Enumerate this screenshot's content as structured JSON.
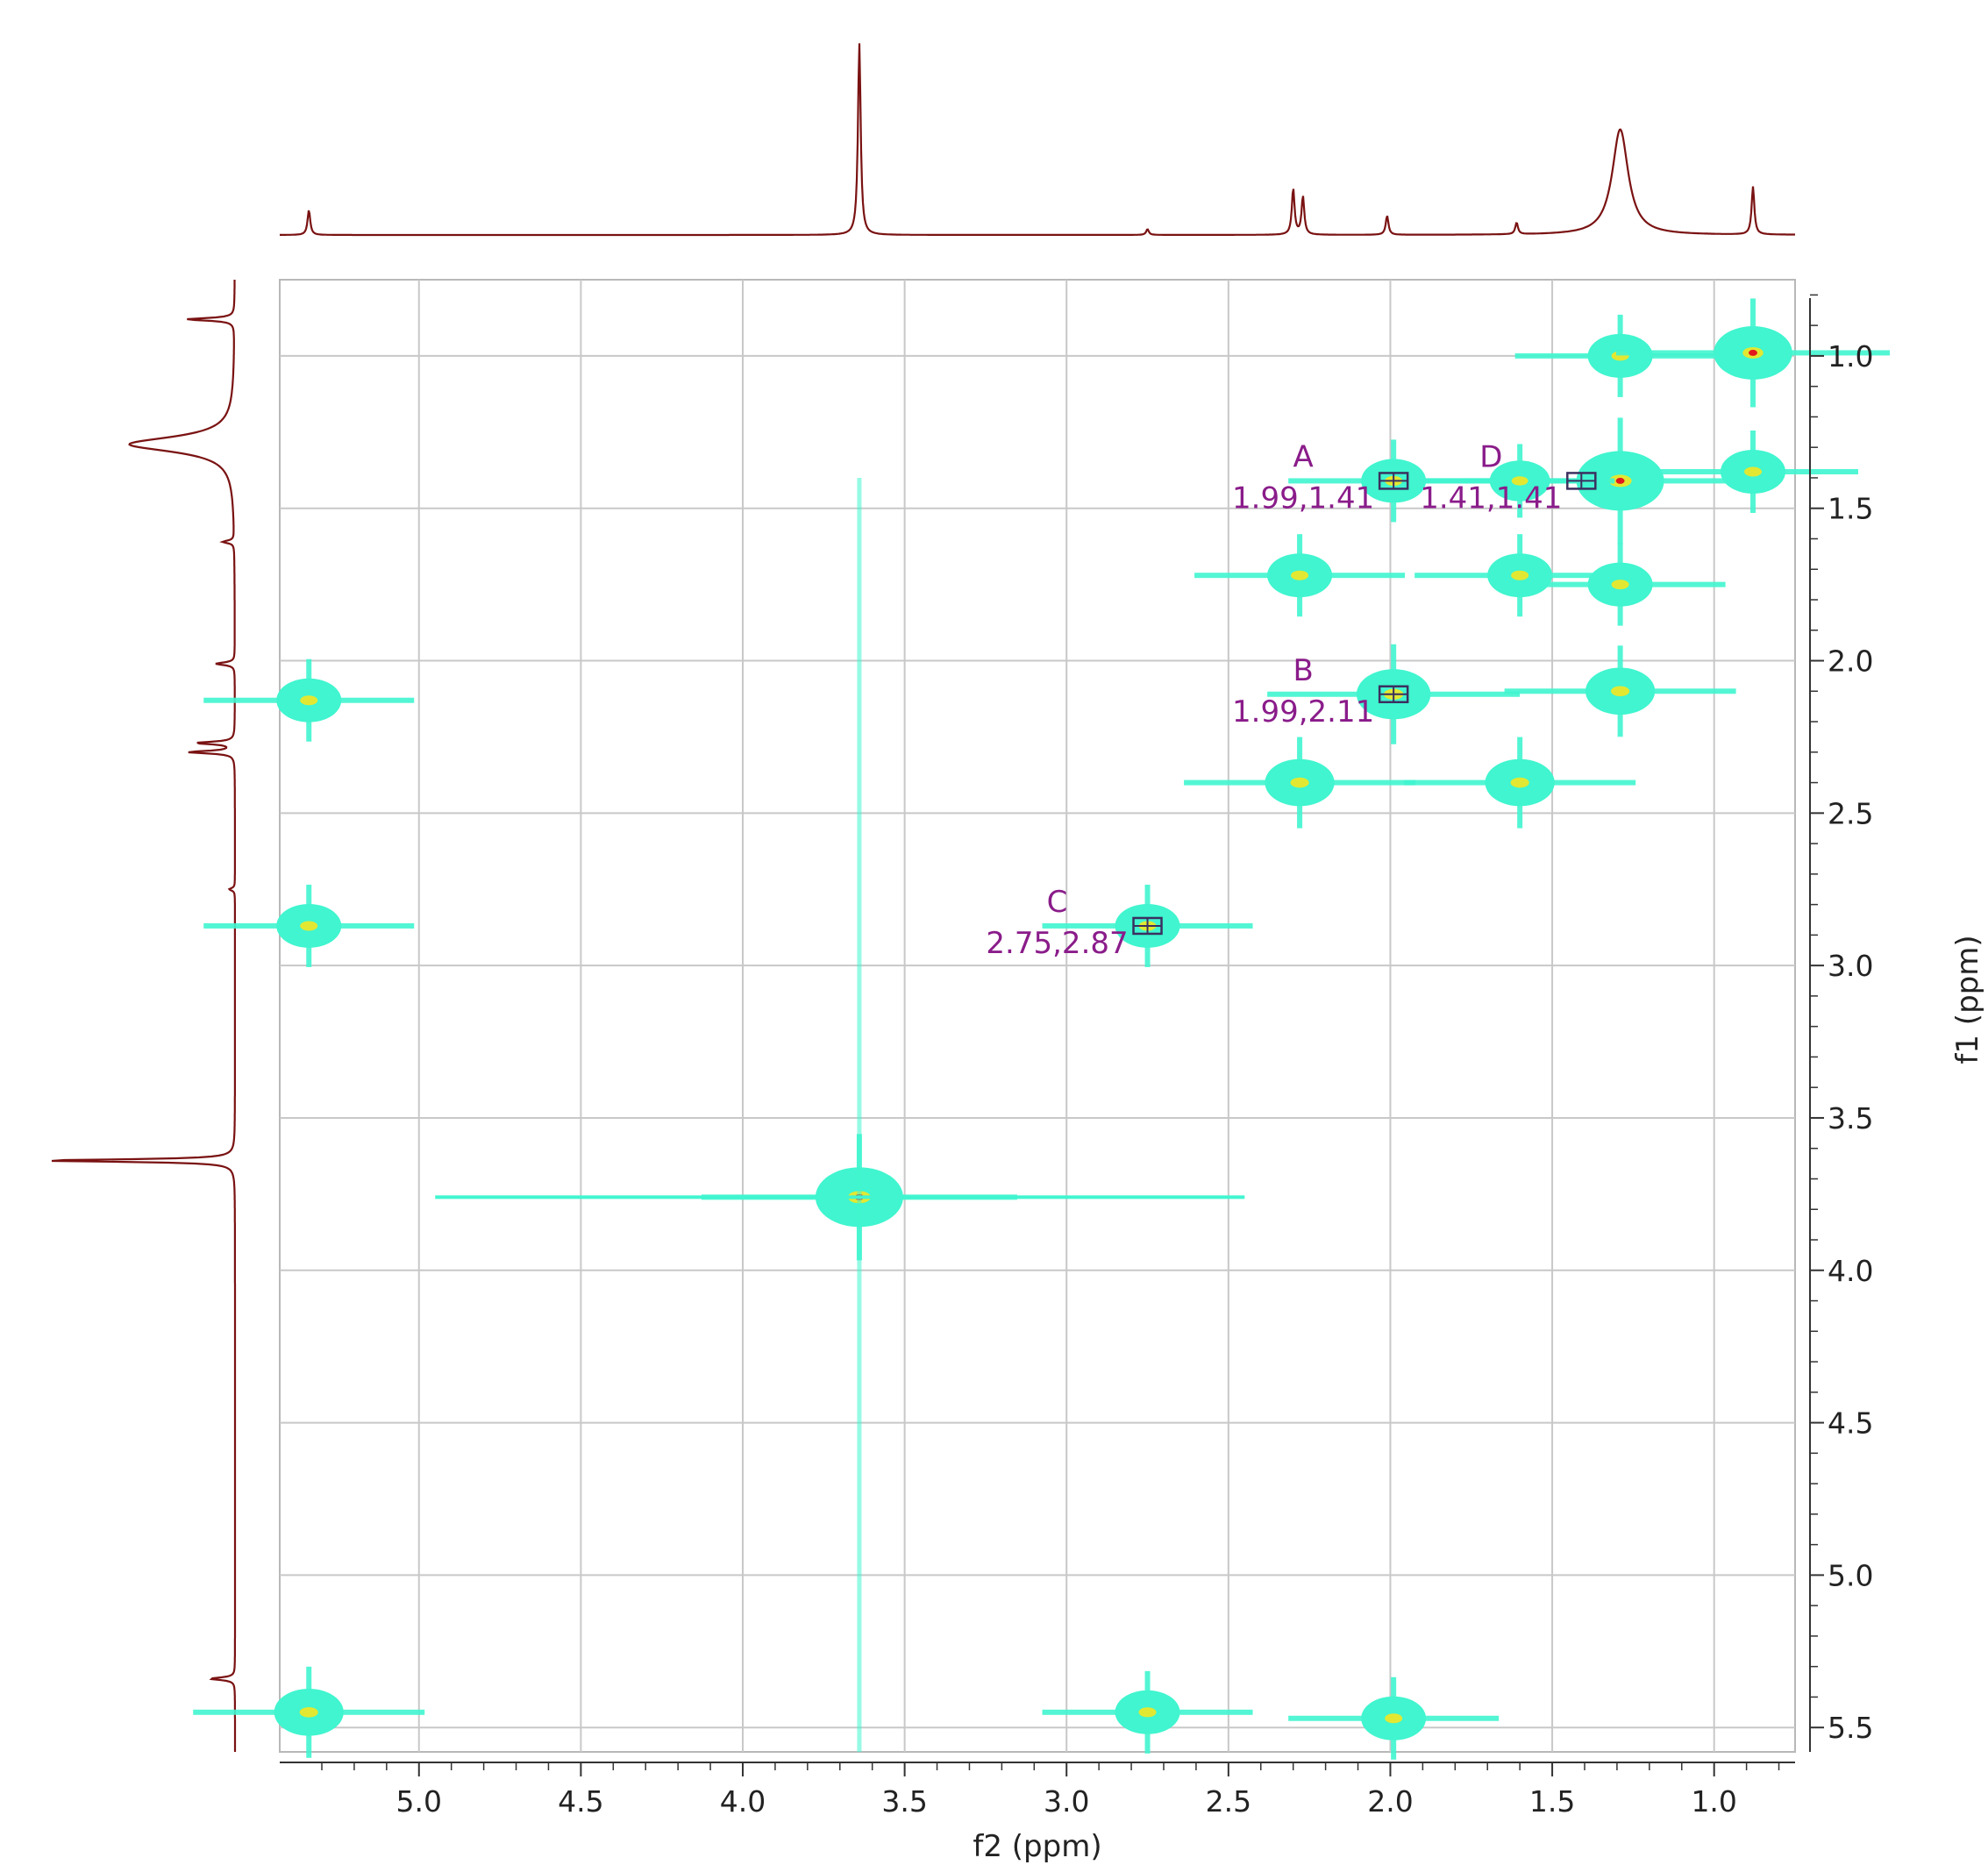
{
  "chart_data": {
    "type": "heatmap",
    "subtype": "2D NMR COSY contour plot with 1D projections",
    "xlabel": "f2 (ppm)",
    "ylabel": "f1 (ppm)",
    "xlim": [
      5.43,
      0.75
    ],
    "ylim": [
      0.75,
      5.58
    ],
    "x_ticks": [
      "5.0",
      "4.5",
      "4.0",
      "3.5",
      "3.0",
      "2.5",
      "2.0",
      "1.5",
      "1.0"
    ],
    "y_ticks": [
      "1.0",
      "1.5",
      "2.0",
      "2.5",
      "3.0",
      "3.5",
      "4.0",
      "4.5",
      "5.0",
      "5.5"
    ],
    "grid": true,
    "colors": {
      "contour_low": "#40f5cf",
      "contour_mid": "#e2e832",
      "contour_high": "#e2181c",
      "projection": "#7a1212",
      "grid": "#c8c8c8",
      "annotation": "#8a1c8a",
      "box": "#3b3060"
    },
    "annotations": [
      {
        "letter": "A",
        "coords": "1.99,1.41",
        "x": 1.99,
        "y": 1.41
      },
      {
        "letter": "B",
        "coords": "1.99,2.11",
        "x": 1.99,
        "y": 2.11
      },
      {
        "letter": "C",
        "coords": "2.75,2.87",
        "x": 2.75,
        "y": 2.87
      },
      {
        "letter": "D",
        "coords": "1.41,1.41",
        "x": 1.41,
        "y": 1.41
      }
    ],
    "cross_peaks": [
      {
        "x": 1.29,
        "y": 1.0,
        "intensity": 0.5
      },
      {
        "x": 0.88,
        "y": 0.99,
        "intensity": 0.8
      },
      {
        "x": 1.99,
        "y": 1.41,
        "intensity": 0.5
      },
      {
        "x": 1.29,
        "y": 1.41,
        "intensity": 1.0
      },
      {
        "x": 0.88,
        "y": 1.38,
        "intensity": 0.5
      },
      {
        "x": 1.6,
        "y": 1.41,
        "intensity": 0.4
      },
      {
        "x": 2.28,
        "y": 1.72,
        "intensity": 0.5
      },
      {
        "x": 1.6,
        "y": 1.72,
        "intensity": 0.5
      },
      {
        "x": 1.29,
        "y": 1.75,
        "intensity": 0.5
      },
      {
        "x": 1.99,
        "y": 2.11,
        "intensity": 0.7
      },
      {
        "x": 1.29,
        "y": 2.1,
        "intensity": 0.6
      },
      {
        "x": 2.28,
        "y": 2.4,
        "intensity": 0.6
      },
      {
        "x": 1.6,
        "y": 2.4,
        "intensity": 0.6
      },
      {
        "x": 2.75,
        "y": 2.87,
        "intensity": 0.5
      },
      {
        "x": 5.34,
        "y": 2.13,
        "intensity": 0.5
      },
      {
        "x": 5.34,
        "y": 2.87,
        "intensity": 0.5
      },
      {
        "x": 3.64,
        "y": 3.76,
        "intensity": 1.0
      },
      {
        "x": 5.34,
        "y": 5.45,
        "intensity": 0.6
      },
      {
        "x": 2.75,
        "y": 5.45,
        "intensity": 0.5
      },
      {
        "x": 1.99,
        "y": 5.47,
        "intensity": 0.5
      }
    ],
    "projection_peaks": [
      {
        "ppm": 5.34,
        "height": 0.13
      },
      {
        "ppm": 3.64,
        "height": 1.0
      },
      {
        "ppm": 2.75,
        "height": 0.03
      },
      {
        "ppm": 2.3,
        "height": 0.24
      },
      {
        "ppm": 2.27,
        "height": 0.2
      },
      {
        "ppm": 2.01,
        "height": 0.1
      },
      {
        "ppm": 1.61,
        "height": 0.06
      },
      {
        "ppm": 1.29,
        "height": 0.55
      },
      {
        "ppm": 0.88,
        "height": 0.25
      }
    ]
  }
}
